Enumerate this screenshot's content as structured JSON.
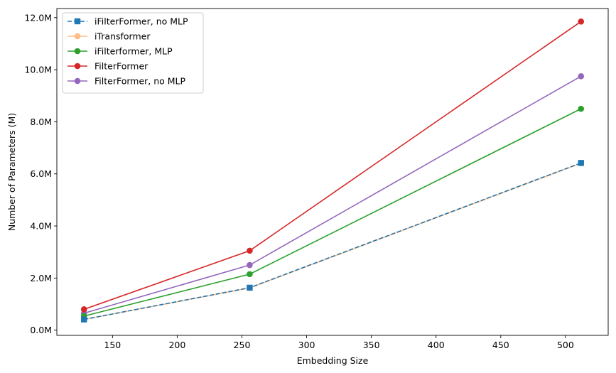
{
  "chart_data": {
    "type": "line",
    "xlabel": "Embedding Size",
    "ylabel": "Number of Parameters (M)",
    "xlim": [
      107,
      533
    ],
    "ylim": [
      -0.2,
      12.35
    ],
    "x": [
      128,
      256,
      512
    ],
    "xticks": [
      150,
      200,
      250,
      300,
      350,
      400,
      450,
      500
    ],
    "xtick_labels": [
      "150",
      "200",
      "250",
      "300",
      "350",
      "400",
      "450",
      "500"
    ],
    "yticks": [
      0,
      2,
      4,
      6,
      8,
      10,
      12
    ],
    "ytick_labels": [
      "0.0M",
      "2.0M",
      "4.0M",
      "6.0M",
      "8.0M",
      "10.0M",
      "12.0M"
    ],
    "legend_position": "top-left",
    "grid": false,
    "series": [
      {
        "name": "iFilterFormer, no MLP",
        "values": [
          0.41,
          1.63,
          6.42
        ],
        "color": "#1f77b4",
        "marker": "square",
        "dashed": true,
        "opacity": 1
      },
      {
        "name": "iTransformer",
        "values": [
          0.41,
          1.62,
          6.41
        ],
        "color": "#ff7f0e",
        "marker": "circle",
        "dashed": false,
        "opacity": 0.5
      },
      {
        "name": "iFilterformer, MLP",
        "values": [
          0.54,
          2.15,
          8.5
        ],
        "color": "#2ca02c",
        "marker": "circle",
        "dashed": false,
        "opacity": 1
      },
      {
        "name": "FilterFormer",
        "values": [
          0.8,
          3.05,
          11.85
        ],
        "color": "#d62728",
        "marker": "circle",
        "dashed": false,
        "opacity": 1
      },
      {
        "name": "FilterFormer, no MLP",
        "values": [
          0.65,
          2.5,
          9.75
        ],
        "color": "#9467bd",
        "marker": "circle",
        "dashed": false,
        "opacity": 1
      }
    ]
  }
}
